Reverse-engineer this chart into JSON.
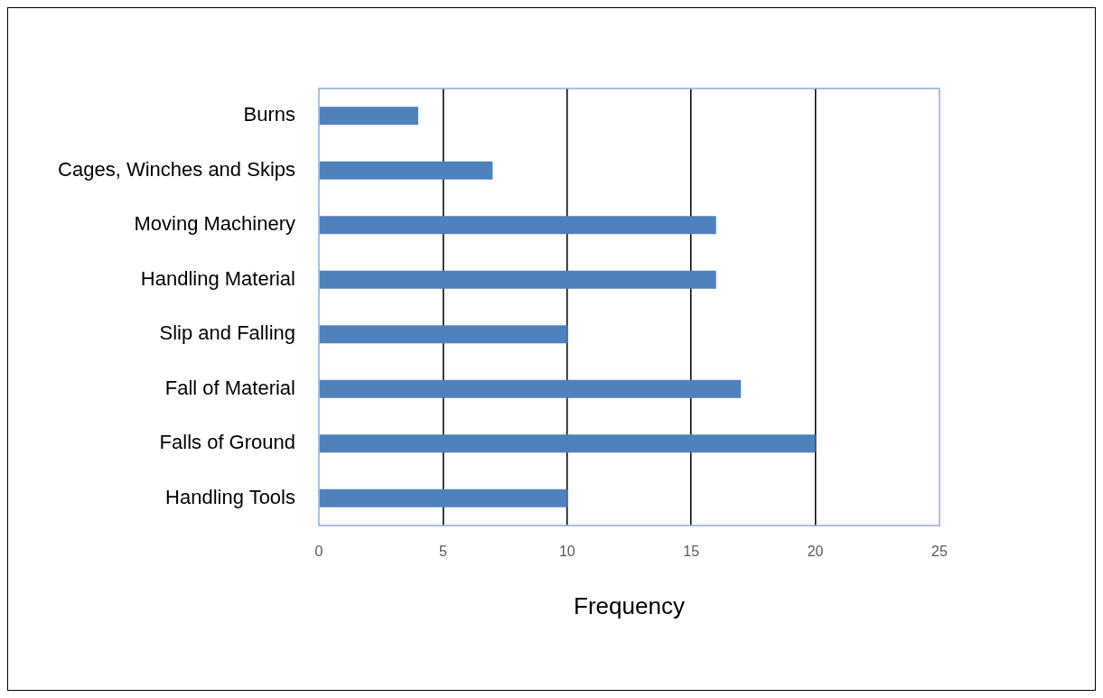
{
  "chart_data": {
    "type": "bar",
    "orientation": "horizontal",
    "xlabel": "Frequency",
    "categories": [
      "Burns",
      "Cages, Winches and Skips",
      "Moving Machinery",
      "Handling Material",
      "Slip and Falling",
      "Fall of Material",
      "Falls of Ground",
      "Handling Tools"
    ],
    "values": [
      4,
      7,
      16,
      16,
      10,
      17,
      20,
      10
    ],
    "color": "#4f81bd",
    "xlim": [
      0,
      25
    ],
    "xticks": [
      0,
      5,
      10,
      15,
      20,
      25
    ],
    "grid": "x",
    "legend": false
  }
}
